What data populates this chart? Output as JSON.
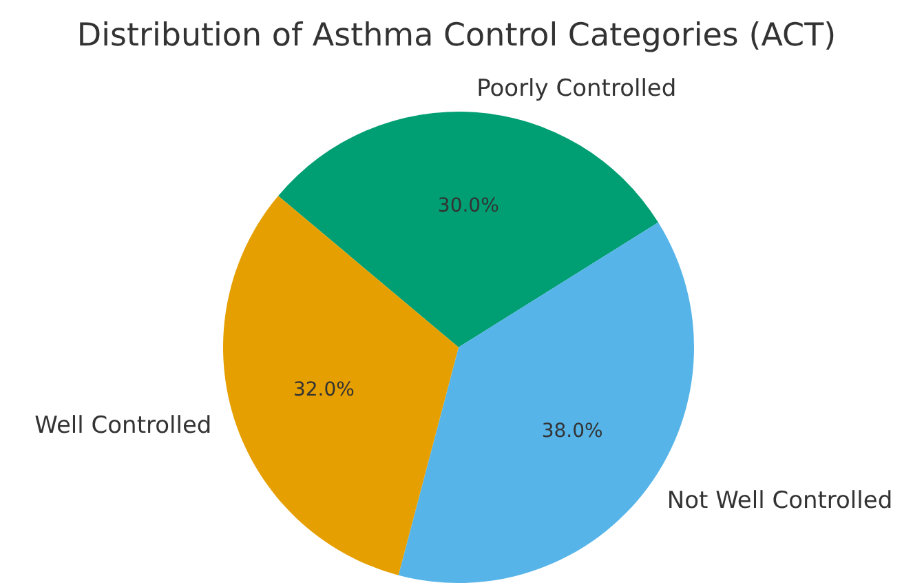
{
  "chart_data": {
    "type": "pie",
    "title": "Distribution of Asthma Control Categories (ACT)",
    "categories": [
      "Well Controlled",
      "Not Well Controlled",
      "Poorly Controlled"
    ],
    "values": [
      32,
      38,
      30
    ],
    "colors": [
      "#e69f00",
      "#56b4e9",
      "#009e73"
    ],
    "value_labels": [
      "32.0%",
      "38.0%",
      "30.0%"
    ]
  }
}
